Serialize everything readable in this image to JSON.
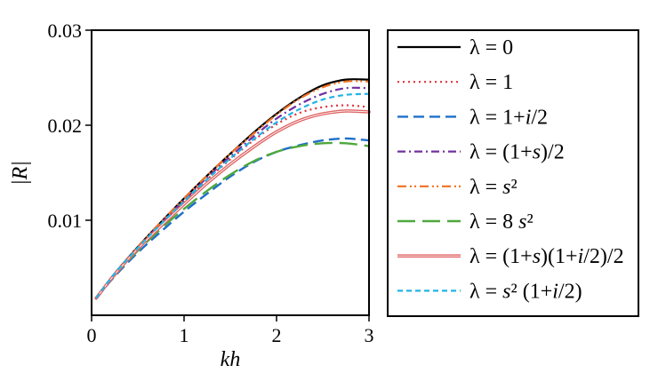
{
  "chart_data": {
    "type": "line",
    "xlabel": "kh",
    "ylabel": "|R|",
    "xlim": [
      0,
      3
    ],
    "ylim": [
      0,
      0.03
    ],
    "x_ticks": [
      0,
      1,
      2,
      3
    ],
    "x_tick_labels": [
      "0",
      "1",
      "2",
      "3"
    ],
    "y_ticks": [
      0.01,
      0.02,
      0.03
    ],
    "y_tick_labels": [
      "0.01",
      "0.02",
      "0.03"
    ],
    "grid": false,
    "legend_position": "right (outside plot)",
    "series": [
      {
        "name": "λ = 0",
        "legend_parts": [
          {
            "t": "λ = 0",
            "i": false
          }
        ],
        "color": "#000000",
        "dash": "",
        "width": 2.2,
        "x": [
          0.05,
          0.25,
          0.5,
          0.75,
          1.0,
          1.25,
          1.5,
          1.75,
          2.0,
          2.25,
          2.5,
          2.75,
          3.0
        ],
        "y": [
          0.0018,
          0.0044,
          0.0072,
          0.0098,
          0.0123,
          0.0147,
          0.017,
          0.0192,
          0.0212,
          0.0229,
          0.0242,
          0.0248,
          0.0248
        ]
      },
      {
        "name": "λ = 1",
        "legend_parts": [
          {
            "t": "λ = 1",
            "i": false
          }
        ],
        "color": "#e0323c",
        "dash": "2,4",
        "width": 2.2,
        "x": [
          0.05,
          0.25,
          0.5,
          0.75,
          1.0,
          1.25,
          1.5,
          1.75,
          2.0,
          2.25,
          2.5,
          2.75,
          3.0
        ],
        "y": [
          0.0018,
          0.0043,
          0.0071,
          0.0096,
          0.012,
          0.0143,
          0.0164,
          0.0184,
          0.0201,
          0.0213,
          0.0219,
          0.0221,
          0.0219
        ]
      },
      {
        "name": "λ = 1+i/2",
        "legend_parts": [
          {
            "t": "λ = 1+",
            "i": false
          },
          {
            "t": "i",
            "i": true
          },
          {
            "t": "/2",
            "i": false
          }
        ],
        "color": "#1f6fc9",
        "dash": "12,6",
        "width": 2.4,
        "x": [
          0.05,
          0.25,
          0.5,
          0.75,
          1.0,
          1.25,
          1.5,
          1.75,
          2.0,
          2.25,
          2.5,
          2.75,
          3.0
        ],
        "y": [
          0.0018,
          0.0041,
          0.0066,
          0.0088,
          0.0109,
          0.0128,
          0.0146,
          0.0161,
          0.0172,
          0.0179,
          0.0184,
          0.0186,
          0.0184
        ]
      },
      {
        "name": "λ = (1+s)/2",
        "legend_parts": [
          {
            "t": "λ = (1+",
            "i": false
          },
          {
            "t": "s",
            "i": true
          },
          {
            "t": ")/2",
            "i": false
          }
        ],
        "color": "#7030a0",
        "dash": "9,4,2,4",
        "width": 2.2,
        "x": [
          0.05,
          0.25,
          0.5,
          0.75,
          1.0,
          1.25,
          1.5,
          1.75,
          2.0,
          2.25,
          2.5,
          2.75,
          3.0
        ],
        "y": [
          0.0018,
          0.0044,
          0.0071,
          0.0097,
          0.0121,
          0.0145,
          0.0167,
          0.0188,
          0.0207,
          0.0222,
          0.0233,
          0.0239,
          0.0239
        ]
      },
      {
        "name": "λ = s²",
        "legend_parts": [
          {
            "t": "λ = ",
            "i": false
          },
          {
            "t": "s",
            "i": true
          },
          {
            "t": "²",
            "i": false
          }
        ],
        "color": "#f07020",
        "dash": "10,4,2,3,2,4",
        "width": 2.2,
        "x": [
          0.05,
          0.25,
          0.5,
          0.75,
          1.0,
          1.25,
          1.5,
          1.75,
          2.0,
          2.25,
          2.5,
          2.75,
          3.0
        ],
        "y": [
          0.0018,
          0.0044,
          0.0072,
          0.0098,
          0.0123,
          0.0147,
          0.017,
          0.0191,
          0.0211,
          0.0228,
          0.024,
          0.0246,
          0.0246
        ]
      },
      {
        "name": "λ = 8 s²",
        "legend_parts": [
          {
            "t": "λ = 8 ",
            "i": false
          },
          {
            "t": "s",
            "i": true
          },
          {
            "t": "²",
            "i": false
          }
        ],
        "color": "#4fa83d",
        "dash": "20,8",
        "width": 2.4,
        "x": [
          0.05,
          0.25,
          0.5,
          0.75,
          1.0,
          1.25,
          1.5,
          1.75,
          2.0,
          2.25,
          2.5,
          2.75,
          3.0
        ],
        "y": [
          0.0018,
          0.0042,
          0.0068,
          0.0091,
          0.0112,
          0.0131,
          0.0148,
          0.0162,
          0.0172,
          0.0178,
          0.0181,
          0.0181,
          0.0178
        ]
      },
      {
        "name": "λ = (1+s)(1+i/2)/2",
        "legend_parts": [
          {
            "t": "λ = (1+",
            "i": false
          },
          {
            "t": "s",
            "i": true
          },
          {
            "t": ")(1+",
            "i": false
          },
          {
            "t": "i",
            "i": true
          },
          {
            "t": "/2)/2",
            "i": false
          }
        ],
        "color": "#e06464",
        "dash": "",
        "width": 3.6,
        "double": true,
        "x": [
          0.05,
          0.25,
          0.5,
          0.75,
          1.0,
          1.25,
          1.5,
          1.75,
          2.0,
          2.25,
          2.5,
          2.75,
          3.0
        ],
        "y": [
          0.0018,
          0.0043,
          0.007,
          0.0094,
          0.0117,
          0.0139,
          0.0159,
          0.0177,
          0.0193,
          0.0205,
          0.0212,
          0.0215,
          0.0214
        ]
      },
      {
        "name": "λ = s² (1+i/2)",
        "legend_parts": [
          {
            "t": "λ = ",
            "i": false
          },
          {
            "t": "s",
            "i": true
          },
          {
            "t": "² (1+",
            "i": false
          },
          {
            "t": "i",
            "i": true
          },
          {
            "t": "/2)",
            "i": false
          }
        ],
        "color": "#21b3e6",
        "dash": "6,4",
        "width": 2.2,
        "x": [
          0.05,
          0.25,
          0.5,
          0.75,
          1.0,
          1.25,
          1.5,
          1.75,
          2.0,
          2.25,
          2.5,
          2.75,
          3.0
        ],
        "y": [
          0.0018,
          0.0044,
          0.0071,
          0.0096,
          0.012,
          0.0143,
          0.0165,
          0.0185,
          0.0203,
          0.0217,
          0.0227,
          0.0232,
          0.0233
        ]
      }
    ]
  }
}
